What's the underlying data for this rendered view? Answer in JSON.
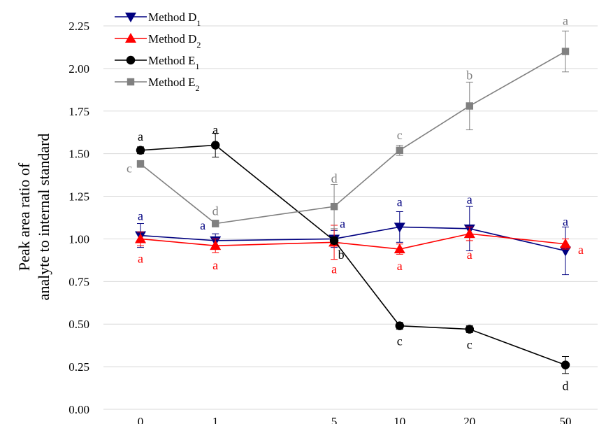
{
  "chart_data": {
    "type": "line",
    "title": "",
    "xlabel": "",
    "ylabel_lines": [
      "Peak area ratio of",
      "analyte to internal standard"
    ],
    "x": [
      0,
      1,
      5,
      10,
      20,
      50
    ],
    "xticks": [
      "0",
      "1",
      "5",
      "10",
      "20",
      "50"
    ],
    "ylim": [
      0,
      2.25
    ],
    "yticks": [
      "0.00",
      "0.25",
      "0.50",
      "0.75",
      "1.00",
      "1.25",
      "1.50",
      "1.75",
      "2.00",
      "2.25"
    ],
    "grid": "horizontal",
    "legend_position": "top-left",
    "series": [
      {
        "base": "Method D",
        "sub": "1",
        "color": "#000080",
        "marker": "triangle-down",
        "values": [
          1.02,
          0.99,
          1.0,
          1.07,
          1.06,
          0.93
        ],
        "errors": [
          0.07,
          0.04,
          0.05,
          0.09,
          0.13,
          0.14
        ],
        "letters": [
          "a",
          "a",
          "a",
          "a",
          "a",
          "a"
        ]
      },
      {
        "base": "Method D",
        "sub": "2",
        "color": "#ff0000",
        "marker": "triangle-up",
        "values": [
          1.0,
          0.96,
          0.98,
          0.94,
          1.03,
          0.97
        ],
        "errors": [
          0.04,
          0.04,
          0.1,
          0.03,
          0.04,
          0.03
        ],
        "letters": [
          "a",
          "a",
          "a",
          "a",
          "a",
          "a"
        ]
      },
      {
        "base": "Method E",
        "sub": "1",
        "color": "#000000",
        "marker": "circle",
        "values": [
          1.52,
          1.55,
          0.99,
          0.49,
          0.47,
          0.26
        ],
        "errors": [
          0.02,
          0.07,
          0.02,
          0.02,
          0.02,
          0.05
        ],
        "letters": [
          "a",
          "a",
          "b",
          "c",
          "c",
          "d"
        ]
      },
      {
        "base": "Method E",
        "sub": "2",
        "color": "#808080",
        "marker": "square",
        "values": [
          1.44,
          1.09,
          1.19,
          1.52,
          1.78,
          2.1
        ],
        "errors": [
          0.02,
          0.02,
          0.13,
          0.03,
          0.14,
          0.12
        ],
        "letters": [
          "c",
          "d",
          "d",
          "c",
          "b",
          "a"
        ]
      }
    ]
  }
}
